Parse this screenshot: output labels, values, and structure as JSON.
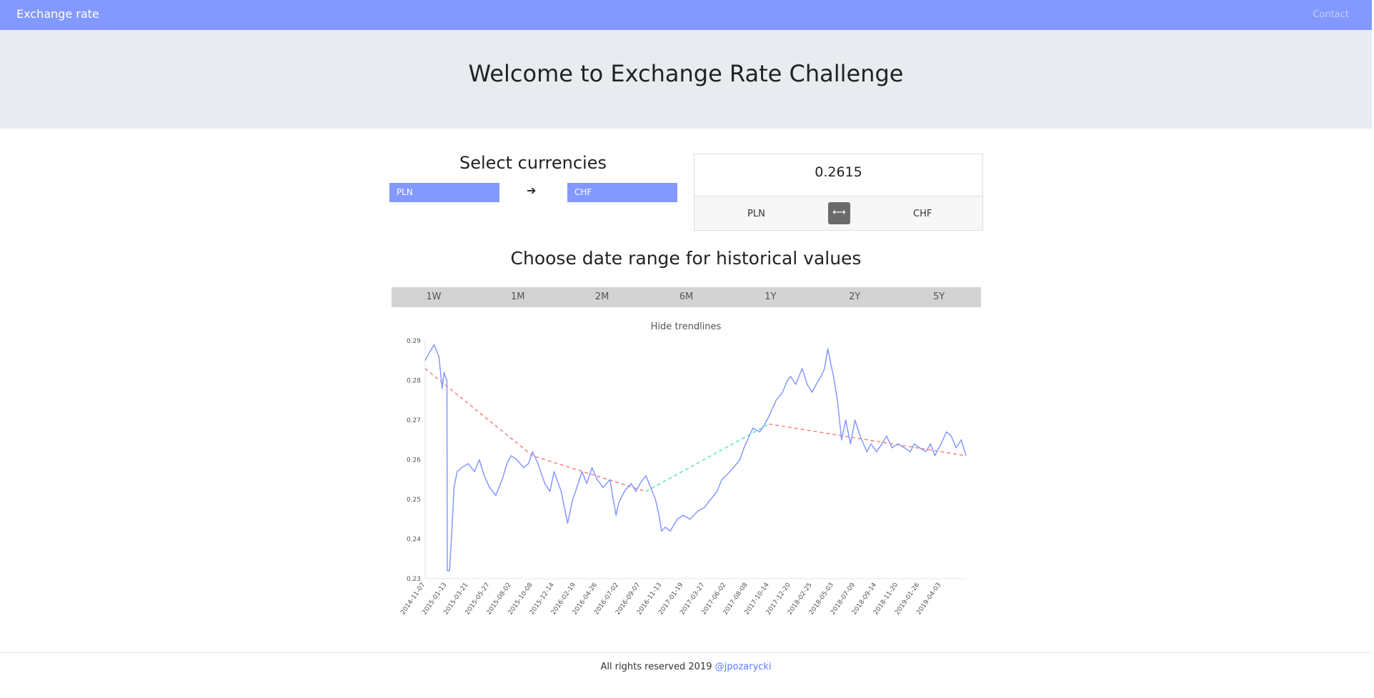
{
  "navbar": {
    "brand": "Exchange rate",
    "contact": "Contact"
  },
  "hero": {
    "title": "Welcome to Exchange Rate Challenge"
  },
  "selector": {
    "title": "Select currencies",
    "from": "PLN",
    "to": "CHF",
    "arrow_icon": "arrow-right-icon"
  },
  "rate": {
    "value": "0.2615",
    "from": "PLN",
    "to": "CHF",
    "swap_icon": "swap-horizontal-icon"
  },
  "date_range": {
    "title": "Choose date range for historical values",
    "options": [
      "1W",
      "1M",
      "2M",
      "6M",
      "1Y",
      "2Y",
      "5Y"
    ]
  },
  "trend_toggle": "Hide trendlines",
  "footer": {
    "text": "All rights reserved 2019",
    "link": "@jpozarycki"
  },
  "colors": {
    "nav": "#8499ff",
    "series": "#8499ff",
    "trend_down": "#ff6b6b",
    "trend_up": "#3fe0b0"
  },
  "chart_data": {
    "type": "line",
    "ylim": [
      0.23,
      0.29
    ],
    "y_ticks": [
      "0.23",
      "0.24",
      "0.25",
      "0.26",
      "0.27",
      "0.28",
      "0.29"
    ],
    "x_ticks": [
      "2014-11-07",
      "2015-01-13",
      "2015-03-21",
      "2015-05-27",
      "2015-08-02",
      "2015-10-08",
      "2015-12-14",
      "2016-02-19",
      "2016-04-26",
      "2016-07-02",
      "2016-09-07",
      "2016-11-13",
      "2017-01-19",
      "2017-03-27",
      "2017-06-02",
      "2017-08-08",
      "2017-10-14",
      "2017-12-20",
      "2018-02-25",
      "2018-05-03",
      "2018-07-09",
      "2018-09-14",
      "2018-11-20",
      "2019-01-26",
      "2019-04-03"
    ],
    "x_range": [
      "2014-11-07",
      "2019-06-20"
    ],
    "series": [
      {
        "values": [
          [
            "2014-11-07",
            0.285
          ],
          [
            "2014-11-20",
            0.287
          ],
          [
            "2014-12-05",
            0.289
          ],
          [
            "2014-12-20",
            0.286
          ],
          [
            "2014-12-30",
            0.278
          ],
          [
            "2015-01-05",
            0.282
          ],
          [
            "2015-01-14",
            0.28
          ],
          [
            "2015-01-15",
            0.232
          ],
          [
            "2015-01-22",
            0.232
          ],
          [
            "2015-01-28",
            0.24
          ],
          [
            "2015-02-05",
            0.253
          ],
          [
            "2015-02-15",
            0.257
          ],
          [
            "2015-03-01",
            0.258
          ],
          [
            "2015-03-21",
            0.259
          ],
          [
            "2015-04-10",
            0.257
          ],
          [
            "2015-04-25",
            0.26
          ],
          [
            "2015-05-10",
            0.256
          ],
          [
            "2015-05-27",
            0.253
          ],
          [
            "2015-06-15",
            0.251
          ],
          [
            "2015-07-05",
            0.255
          ],
          [
            "2015-07-20",
            0.259
          ],
          [
            "2015-08-02",
            0.261
          ],
          [
            "2015-08-20",
            0.26
          ],
          [
            "2015-09-10",
            0.258
          ],
          [
            "2015-09-25",
            0.259
          ],
          [
            "2015-10-08",
            0.262
          ],
          [
            "2015-10-25",
            0.259
          ],
          [
            "2015-11-15",
            0.254
          ],
          [
            "2015-12-01",
            0.252
          ],
          [
            "2015-12-14",
            0.257
          ],
          [
            "2016-01-05",
            0.252
          ],
          [
            "2016-01-25",
            0.244
          ],
          [
            "2016-02-10",
            0.25
          ],
          [
            "2016-02-19",
            0.252
          ],
          [
            "2016-03-10",
            0.257
          ],
          [
            "2016-03-25",
            0.254
          ],
          [
            "2016-04-10",
            0.258
          ],
          [
            "2016-04-26",
            0.255
          ],
          [
            "2016-05-15",
            0.253
          ],
          [
            "2016-06-05",
            0.255
          ],
          [
            "2016-06-24",
            0.246
          ],
          [
            "2016-07-02",
            0.249
          ],
          [
            "2016-07-20",
            0.252
          ],
          [
            "2016-08-10",
            0.254
          ],
          [
            "2016-08-25",
            0.252
          ],
          [
            "2016-09-07",
            0.254
          ],
          [
            "2016-09-25",
            0.256
          ],
          [
            "2016-10-10",
            0.253
          ],
          [
            "2016-10-25",
            0.25
          ],
          [
            "2016-11-05",
            0.246
          ],
          [
            "2016-11-13",
            0.242
          ],
          [
            "2016-11-25",
            0.243
          ],
          [
            "2016-12-10",
            0.242
          ],
          [
            "2017-01-01",
            0.245
          ],
          [
            "2017-01-19",
            0.246
          ],
          [
            "2017-02-10",
            0.245
          ],
          [
            "2017-03-05",
            0.247
          ],
          [
            "2017-03-27",
            0.248
          ],
          [
            "2017-04-15",
            0.25
          ],
          [
            "2017-05-05",
            0.252
          ],
          [
            "2017-05-20",
            0.255
          ],
          [
            "2017-06-02",
            0.256
          ],
          [
            "2017-06-25",
            0.258
          ],
          [
            "2017-07-15",
            0.26
          ],
          [
            "2017-07-28",
            0.263
          ],
          [
            "2017-08-08",
            0.265
          ],
          [
            "2017-08-25",
            0.268
          ],
          [
            "2017-09-15",
            0.267
          ],
          [
            "2017-10-01",
            0.269
          ],
          [
            "2017-10-14",
            0.271
          ],
          [
            "2017-11-05",
            0.275
          ],
          [
            "2017-11-25",
            0.277
          ],
          [
            "2017-12-10",
            0.28
          ],
          [
            "2017-12-20",
            0.281
          ],
          [
            "2018-01-05",
            0.279
          ],
          [
            "2018-01-25",
            0.283
          ],
          [
            "2018-02-10",
            0.279
          ],
          [
            "2018-02-25",
            0.277
          ],
          [
            "2018-03-10",
            0.279
          ],
          [
            "2018-03-25",
            0.281
          ],
          [
            "2018-04-05",
            0.283
          ],
          [
            "2018-04-15",
            0.288
          ],
          [
            "2018-04-25",
            0.284
          ],
          [
            "2018-05-03",
            0.281
          ],
          [
            "2018-05-15",
            0.275
          ],
          [
            "2018-05-28",
            0.265
          ],
          [
            "2018-06-10",
            0.27
          ],
          [
            "2018-06-25",
            0.264
          ],
          [
            "2018-07-09",
            0.27
          ],
          [
            "2018-07-25",
            0.266
          ],
          [
            "2018-08-15",
            0.262
          ],
          [
            "2018-08-28",
            0.264
          ],
          [
            "2018-09-14",
            0.262
          ],
          [
            "2018-10-01",
            0.264
          ],
          [
            "2018-10-15",
            0.266
          ],
          [
            "2018-11-01",
            0.263
          ],
          [
            "2018-11-20",
            0.264
          ],
          [
            "2018-12-10",
            0.263
          ],
          [
            "2018-12-28",
            0.262
          ],
          [
            "2019-01-10",
            0.264
          ],
          [
            "2019-01-26",
            0.263
          ],
          [
            "2019-02-15",
            0.262
          ],
          [
            "2019-03-01",
            0.264
          ],
          [
            "2019-03-15",
            0.261
          ],
          [
            "2019-04-03",
            0.264
          ],
          [
            "2019-04-20",
            0.267
          ],
          [
            "2019-05-05",
            0.266
          ],
          [
            "2019-05-20",
            0.263
          ],
          [
            "2019-06-05",
            0.265
          ],
          [
            "2019-06-20",
            0.261
          ]
        ]
      }
    ],
    "trendlines": [
      {
        "kind": "down",
        "points": [
          [
            "2014-11-07",
            0.283
          ],
          [
            "2015-10-08",
            0.261
          ],
          [
            "2016-09-25",
            0.252
          ]
        ]
      },
      {
        "kind": "up",
        "points": [
          [
            "2016-09-25",
            0.252
          ],
          [
            "2017-10-14",
            0.269
          ]
        ]
      },
      {
        "kind": "down",
        "points": [
          [
            "2017-10-14",
            0.269
          ],
          [
            "2019-06-20",
            0.261
          ]
        ]
      }
    ]
  }
}
